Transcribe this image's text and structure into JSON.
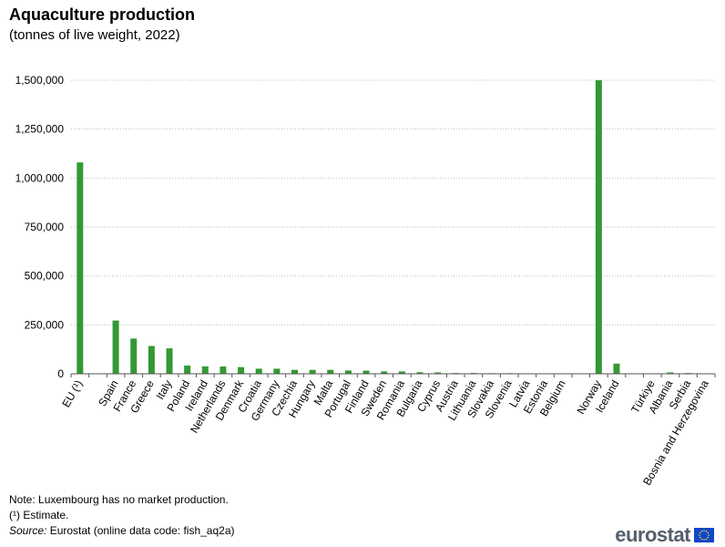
{
  "header": {
    "title": "Aquaculture production",
    "subtitle": "(tonnes of live weight, 2022)"
  },
  "chart_data": {
    "type": "bar",
    "title": "Aquaculture production",
    "subtitle": "(tonnes of live weight, 2022)",
    "xlabel": "",
    "ylabel": "",
    "ylim": [
      0,
      1500000
    ],
    "yticks": [
      0,
      250000,
      500000,
      750000,
      1000000,
      1250000,
      1500000
    ],
    "ytick_labels": [
      "0",
      "250,000",
      "500,000",
      "750,000",
      "1,000,000",
      "1,250,000",
      "1,500,000"
    ],
    "grid": true,
    "legend": "none",
    "bar_color": "#339933",
    "categories": [
      "EU (¹)",
      "",
      "Spain",
      "France",
      "Greece",
      "Italy",
      "Poland",
      "Ireland",
      "Netherlands",
      "Denmark",
      "Croatia",
      "Germany",
      "Czechia",
      "Hungary",
      "Malta",
      "Portugal",
      "Finland",
      "Sweden",
      "Romania",
      "Bulgaria",
      "Cyprus",
      "Austria",
      "Lithuania",
      "Slovakia",
      "Slovenia",
      "Latvia",
      "Estonia",
      "Belgium",
      "",
      "Norway",
      "Iceland",
      "",
      "Türkiye",
      "Albania",
      "Serbia",
      "Bosnia and Herzegovina"
    ],
    "values": [
      1080000,
      null,
      272000,
      180000,
      142000,
      130000,
      42000,
      38000,
      37000,
      34000,
      26000,
      26000,
      20000,
      20000,
      20000,
      17000,
      16000,
      12000,
      12000,
      8000,
      7000,
      4000,
      4000,
      3000,
      3000,
      2000,
      2000,
      1000,
      null,
      1500000,
      52000,
      null,
      0,
      7000,
      4000,
      2000
    ]
  },
  "notes": {
    "note": "Note: Luxembourg has no market production.",
    "estimate": "(¹) Estimate.",
    "source_label": "Source:",
    "source_text": " Eurostat (online data code: fish_aq2a)"
  },
  "logo": {
    "text": "eurostat",
    "flag_color": "#0e47cb",
    "star_color": "#ffd617"
  }
}
